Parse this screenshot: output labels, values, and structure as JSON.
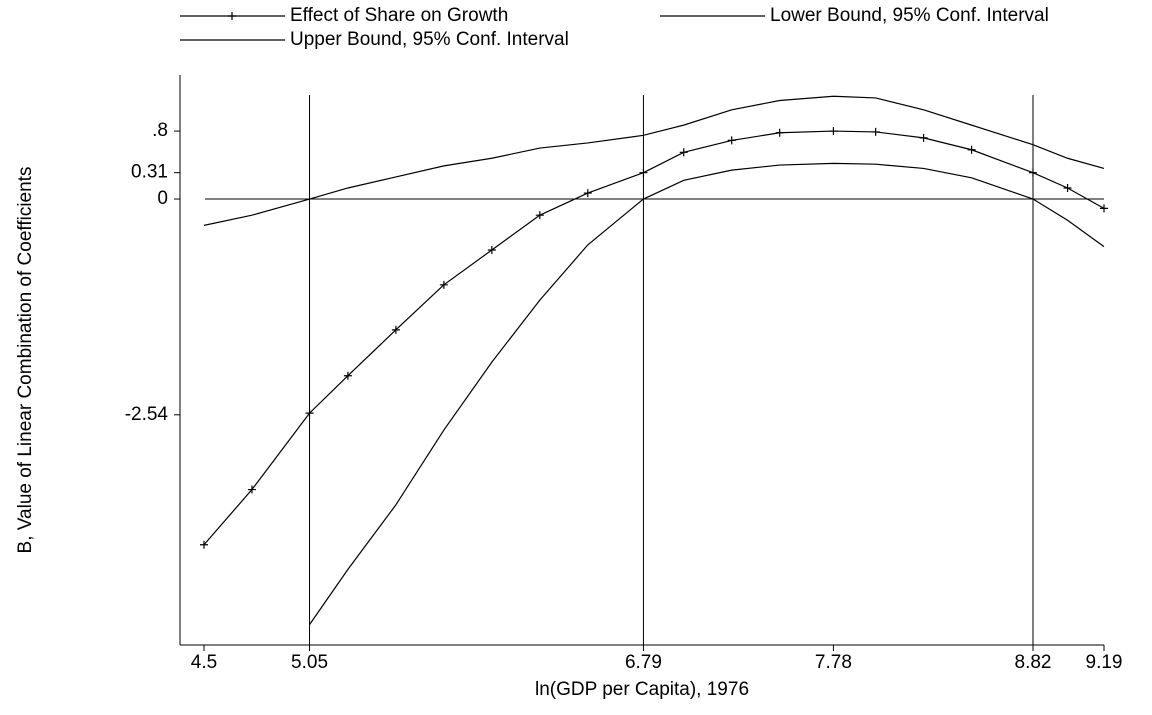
{
  "chart_data": {
    "type": "line",
    "x_label": "ln(GDP per Capita), 1976",
    "y_label": "B, Value of Linear Combination of Coefficients",
    "x": [
      4.5,
      4.75,
      5.05,
      5.25,
      5.5,
      5.75,
      6.0,
      6.25,
      6.5,
      6.79,
      7.0,
      7.25,
      7.5,
      7.78,
      8.0,
      8.25,
      8.5,
      8.82,
      9.0,
      9.19
    ],
    "series": [
      {
        "name": "Effect of Share on Growth",
        "color": "#000000",
        "marker": "+",
        "values": [
          -4.07,
          -3.42,
          -2.52,
          -2.08,
          -1.54,
          -1.01,
          -0.6,
          -0.19,
          0.07,
          0.31,
          0.55,
          0.69,
          0.78,
          0.8,
          0.79,
          0.72,
          0.58,
          0.31,
          0.13,
          -0.11
        ]
      },
      {
        "name": "Lower Bound, 95% Conf. Interval",
        "color": "#000000",
        "values": [
          null,
          null,
          -5.01,
          -4.36,
          -3.6,
          -2.72,
          -1.92,
          -1.19,
          -0.54,
          0,
          0.22,
          0.34,
          0.4,
          0.42,
          0.41,
          0.36,
          0.25,
          0,
          -0.25,
          -0.56
        ]
      },
      {
        "name": "Upper Bound, 95% Conf. Interval",
        "color": "#000000",
        "values": [
          -0.31,
          -0.19,
          0,
          0.13,
          0.26,
          0.39,
          0.48,
          0.6,
          0.66,
          0.75,
          0.87,
          1.05,
          1.16,
          1.21,
          1.19,
          1.05,
          0.87,
          0.64,
          0.48,
          0.36
        ]
      }
    ],
    "xlim": [
      4.375,
      9.19
    ],
    "ylim": [
      -5.25,
      1.46
    ],
    "xticks": [
      4.5,
      5.05,
      6.79,
      7.78,
      8.82,
      9.19
    ],
    "yticks": [
      -2.54,
      0,
      0.31,
      {
        "value": 0.8,
        "label": ".8"
      }
    ],
    "reference_lines": {
      "x": [
        5.05,
        6.79,
        8.82
      ],
      "y": [
        0
      ]
    },
    "legend": "top"
  }
}
